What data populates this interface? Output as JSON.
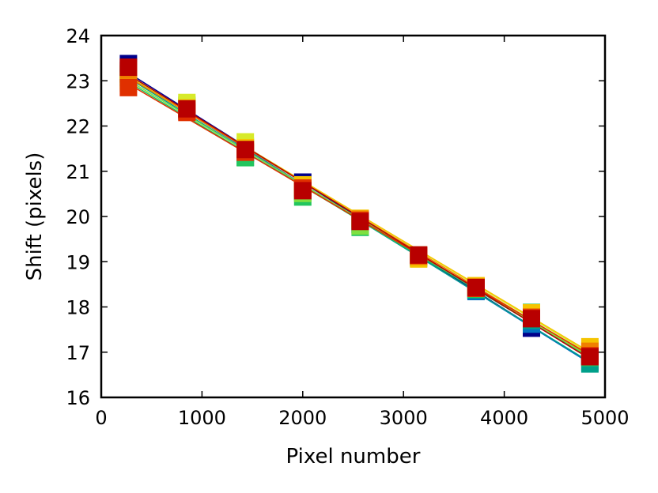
{
  "chart_data": {
    "type": "scatter",
    "title": "",
    "xlabel": "Pixel number",
    "ylabel": "Shift (pixels)",
    "xlim": [
      0,
      5000
    ],
    "ylim": [
      16,
      24
    ],
    "xticks": [
      0,
      1000,
      2000,
      3000,
      4000,
      5000
    ],
    "yticks": [
      16,
      17,
      18,
      19,
      20,
      21,
      22,
      23,
      24
    ],
    "x": [
      270,
      850,
      1430,
      2000,
      2570,
      3150,
      3720,
      4270,
      4850
    ],
    "grid": false,
    "legend": "none",
    "marker": "square",
    "fit_lines": true,
    "series": [
      {
        "color": "#00008b",
        "values": [
          23.38,
          22.33,
          21.4,
          20.76,
          19.82,
          19.13,
          18.37,
          17.53,
          16.9
        ]
      },
      {
        "color": "#0070c0",
        "values": [
          23.22,
          22.35,
          21.42,
          20.6,
          19.86,
          19.1,
          18.34,
          17.62,
          16.78
        ]
      },
      {
        "color": "#00a08a",
        "values": [
          23.15,
          22.4,
          21.31,
          20.55,
          19.82,
          19.13,
          18.38,
          17.7,
          16.74
        ]
      },
      {
        "color": "#22c55e",
        "values": [
          23.07,
          22.44,
          21.3,
          20.43,
          19.76,
          19.08,
          18.39,
          17.88,
          16.88
        ]
      },
      {
        "color": "#7ee040",
        "values": [
          22.95,
          22.47,
          21.55,
          20.51,
          19.79,
          19.1,
          18.42,
          17.77,
          16.96
        ]
      },
      {
        "color": "#d7ea2a",
        "values": [
          23.0,
          22.52,
          21.65,
          20.68,
          19.93,
          19.15,
          18.45,
          17.8,
          17.05
        ]
      },
      {
        "color": "#f5c400",
        "values": [
          23.16,
          22.4,
          21.52,
          20.7,
          19.96,
          19.06,
          18.47,
          17.87,
          17.12
        ]
      },
      {
        "color": "#f08000",
        "values": [
          23.24,
          22.34,
          21.46,
          20.6,
          19.94,
          19.12,
          18.44,
          17.78,
          17.02
        ]
      },
      {
        "color": "#e03000",
        "values": [
          22.85,
          22.3,
          21.42,
          20.63,
          19.91,
          19.14,
          18.41,
          17.76,
          16.92
        ]
      },
      {
        "color": "#b80000",
        "values": [
          23.3,
          22.38,
          21.48,
          20.57,
          19.89,
          19.15,
          18.43,
          17.74,
          16.9
        ]
      }
    ]
  }
}
